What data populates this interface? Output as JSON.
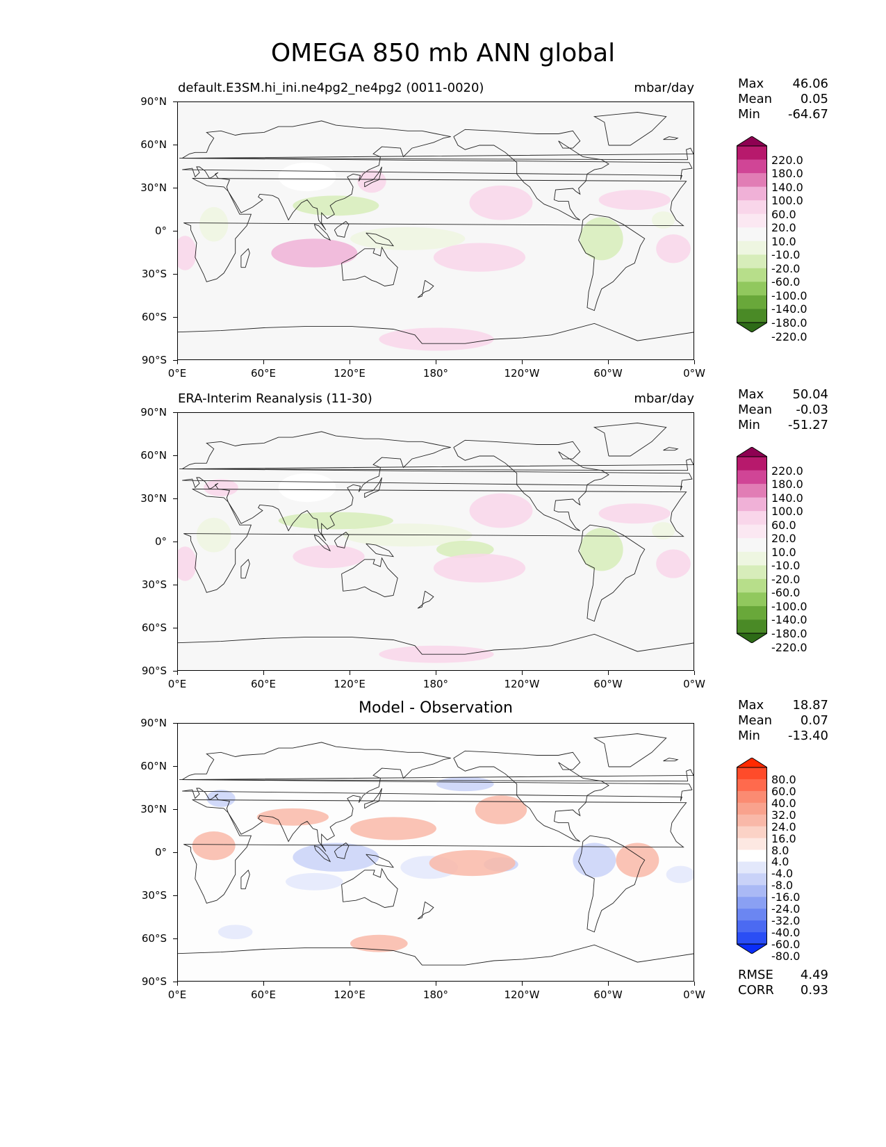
{
  "figure": {
    "title": "OMEGA 850 mb ANN global"
  },
  "axes": {
    "y_ticks": [
      "90°N",
      "60°N",
      "30°N",
      "0°",
      "30°S",
      "60°S",
      "90°S"
    ],
    "x_ticks": [
      "0°E",
      "60°E",
      "120°E",
      "180°",
      "120°W",
      "60°W",
      "0°W"
    ]
  },
  "panels": [
    {
      "title_left": "default.E3SM.hi_ini.ne4pg2_ne4pg2 (0011-0020)",
      "title_right": "mbar/day",
      "title_center": "",
      "stats": [
        {
          "label": "Max",
          "value": "46.06"
        },
        {
          "label": "Mean",
          "value": "0.05"
        },
        {
          "label": "Min",
          "value": "-64.67"
        }
      ],
      "colorbar": {
        "levels": [
          "220.0",
          "180.0",
          "140.0",
          "100.0",
          "60.0",
          "20.0",
          "10.0",
          "-10.0",
          "-20.0",
          "-60.0",
          "-100.0",
          "-140.0",
          "-180.0",
          "-220.0"
        ],
        "colors": [
          "#8e0152",
          "#b7196c",
          "#d04596",
          "#e17db5",
          "#f0b1d7",
          "#f9d6ea",
          "#fbe8f2",
          "#f7f7f7",
          "#eef6e1",
          "#d7edba",
          "#b7de8a",
          "#91c85e",
          "#69a83a",
          "#4a8a26",
          "#2d6b17"
        ]
      }
    },
    {
      "title_left": "ERA-Interim Reanalysis (11-30)",
      "title_right": "mbar/day",
      "title_center": "",
      "stats": [
        {
          "label": "Max",
          "value": "50.04"
        },
        {
          "label": "Mean",
          "value": "-0.03"
        },
        {
          "label": "Min",
          "value": "-51.27"
        }
      ],
      "colorbar": {
        "levels": [
          "220.0",
          "180.0",
          "140.0",
          "100.0",
          "60.0",
          "20.0",
          "10.0",
          "-10.0",
          "-20.0",
          "-60.0",
          "-100.0",
          "-140.0",
          "-180.0",
          "-220.0"
        ],
        "colors": [
          "#8e0152",
          "#b7196c",
          "#d04596",
          "#e17db5",
          "#f0b1d7",
          "#f9d6ea",
          "#fbe8f2",
          "#f7f7f7",
          "#eef6e1",
          "#d7edba",
          "#b7de8a",
          "#91c85e",
          "#69a83a",
          "#4a8a26",
          "#2d6b17"
        ]
      }
    },
    {
      "title_left": "",
      "title_right": "",
      "title_center": "Model - Observation",
      "stats": [
        {
          "label": "Max",
          "value": "18.87"
        },
        {
          "label": "Mean",
          "value": "0.07"
        },
        {
          "label": "Min",
          "value": "-13.40"
        }
      ],
      "colorbar": {
        "levels": [
          "80.0",
          "60.0",
          "40.0",
          "32.0",
          "24.0",
          "16.0",
          "8.0",
          "4.0",
          "-4.0",
          "-8.0",
          "-16.0",
          "-24.0",
          "-32.0",
          "-40.0",
          "-60.0",
          "-80.0"
        ],
        "colors": [
          "#ff2a00",
          "#ff4b2a",
          "#ff6a4d",
          "#fb8b72",
          "#f9a28d",
          "#f9b8a8",
          "#fbd2c6",
          "#fde8e2",
          "#ffffff",
          "#e3e8fb",
          "#c9d2f8",
          "#aab9f5",
          "#8aa0f3",
          "#6b86f2",
          "#4b6af2",
          "#2a4ef5",
          "#0a2df8"
        ]
      },
      "extra_stats": [
        {
          "label": "RMSE",
          "value": "4.49"
        },
        {
          "label": "CORR",
          "value": "0.93"
        }
      ]
    }
  ]
}
